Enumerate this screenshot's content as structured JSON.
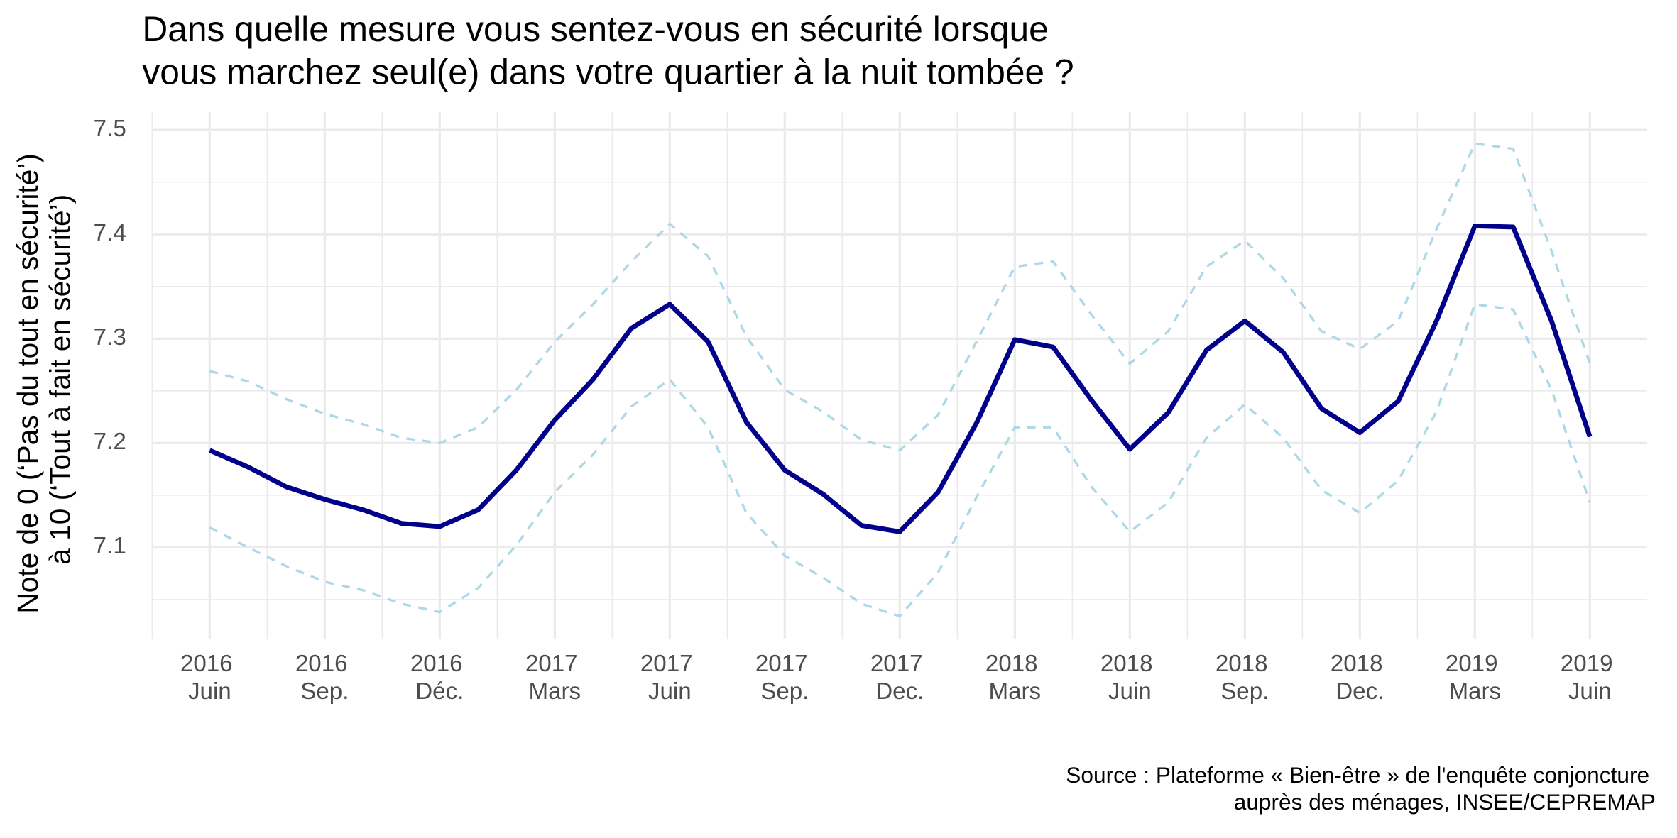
{
  "chart_data": {
    "type": "line",
    "title": "Dans quelle mesure vous sentez-vous en sécurité lorsque\n vous marchez seul(e) dans votre quartier à la nuit tombée ?",
    "y_label": "Note de 0 (‘Pas du tout en sécurité’)\n à 10 (‘Tout à fait en sécurité’)",
    "caption": "Source : Plateforme « Bien-être » de l'enquête conjoncture\nauprès des ménages, INSEE/CEPREMAP",
    "x": [
      "2016-06",
      "2016-07",
      "2016-08",
      "2016-09",
      "2016-10",
      "2016-11",
      "2016-12",
      "2017-01",
      "2017-02",
      "2017-03",
      "2017-04",
      "2017-05",
      "2017-06",
      "2017-07",
      "2017-08",
      "2017-09",
      "2017-10",
      "2017-11",
      "2017-12",
      "2018-01",
      "2018-02",
      "2018-03",
      "2018-04",
      "2018-05",
      "2018-06",
      "2018-07",
      "2018-08",
      "2018-09",
      "2018-10",
      "2018-11",
      "2018-12",
      "2019-01",
      "2019-02",
      "2019-03",
      "2019-04",
      "2019-05",
      "2019-06"
    ],
    "series": [
      {
        "color": "#add8e6",
        "dashed": true,
        "values": [
          7.269,
          7.259,
          7.242,
          7.228,
          7.218,
          7.205,
          7.2,
          7.215,
          7.251,
          7.297,
          7.333,
          7.374,
          7.41,
          7.379,
          7.302,
          7.251,
          7.23,
          7.203,
          7.193,
          7.227,
          7.297,
          7.369,
          7.374,
          7.323,
          7.276,
          7.307,
          7.369,
          7.394,
          7.358,
          7.307,
          7.29,
          7.317,
          7.405,
          7.487,
          7.482,
          7.384,
          7.276
        ]
      },
      {
        "color": "#add8e6",
        "dashed": true,
        "values": [
          7.119,
          7.1,
          7.082,
          7.067,
          7.059,
          7.046,
          7.038,
          7.061,
          7.102,
          7.153,
          7.189,
          7.235,
          7.261,
          7.215,
          7.133,
          7.092,
          7.071,
          7.046,
          7.034,
          7.076,
          7.148,
          7.215,
          7.215,
          7.158,
          7.115,
          7.143,
          7.205,
          7.237,
          7.205,
          7.155,
          7.133,
          7.164,
          7.23,
          7.333,
          7.328,
          7.251,
          7.143
        ]
      },
      {
        "color": "#00008b",
        "dashed": false,
        "values": [
          7.193,
          7.177,
          7.158,
          7.146,
          7.136,
          7.123,
          7.12,
          7.136,
          7.174,
          7.222,
          7.261,
          7.31,
          7.333,
          7.297,
          7.22,
          7.174,
          7.151,
          7.121,
          7.115,
          7.153,
          7.219,
          7.299,
          7.292,
          7.241,
          7.194,
          7.229,
          7.289,
          7.317,
          7.287,
          7.233,
          7.21,
          7.24,
          7.317,
          7.408,
          7.407,
          7.317,
          7.206
        ]
      }
    ],
    "xlim": [
      "2016-04-16",
      "2019-07-16"
    ],
    "xticks": [
      {
        "value": "2016-06",
        "label": "2016\nJuin"
      },
      {
        "value": "2016-09",
        "label": "2016\nSep."
      },
      {
        "value": "2016-12",
        "label": "2016\nDéc."
      },
      {
        "value": "2017-03",
        "label": "2017\nMars"
      },
      {
        "value": "2017-06",
        "label": "2017\nJuin"
      },
      {
        "value": "2017-09",
        "label": "2017\nSep."
      },
      {
        "value": "2017-12",
        "label": "2017\nDec."
      },
      {
        "value": "2018-03",
        "label": "2018\nMars"
      },
      {
        "value": "2018-06",
        "label": "2018\nJuin"
      },
      {
        "value": "2018-09",
        "label": "2018\nSep."
      },
      {
        "value": "2018-12",
        "label": "2018\nDec."
      },
      {
        "value": "2019-03",
        "label": "2019\nMars"
      },
      {
        "value": "2019-06",
        "label": "2019\nJuin"
      }
    ],
    "ylim": [
      7.012,
      7.517
    ],
    "yticks": [
      7.1,
      7.2,
      7.3,
      7.4,
      7.5
    ],
    "grid": true
  }
}
